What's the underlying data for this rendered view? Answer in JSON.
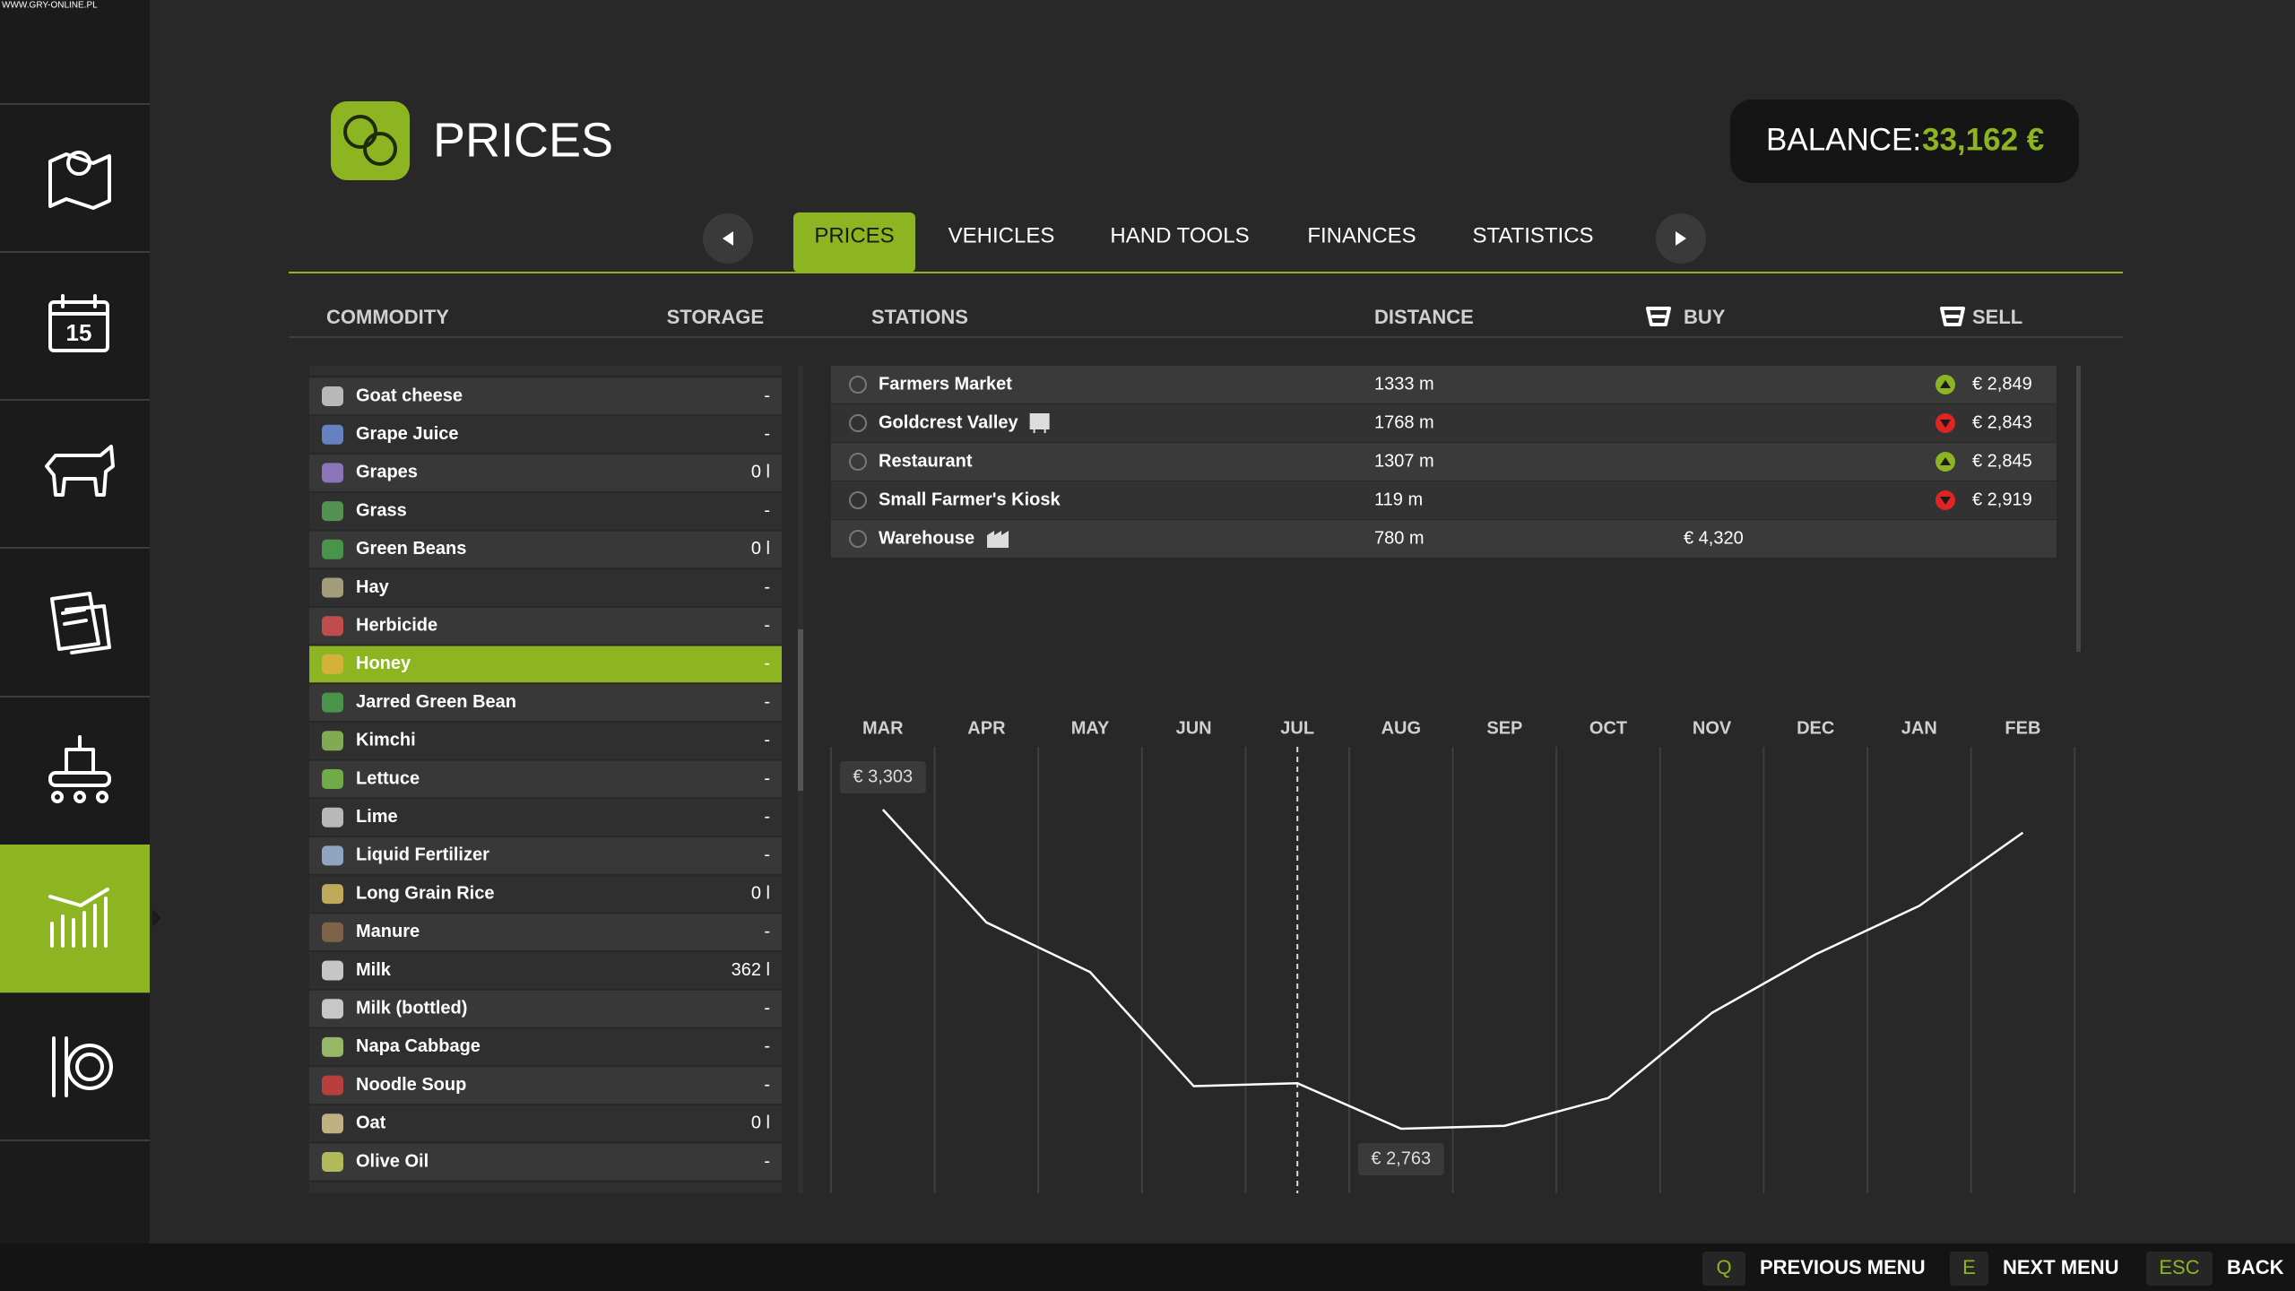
{
  "watermark": "WWW.GRY-ONLINE.PL",
  "sidebar": {
    "calendar_day": "15"
  },
  "header": {
    "title": "PRICES",
    "balance_label": "BALANCE:",
    "balance_value": "33,162 €"
  },
  "tabs": {
    "items": [
      "PRICES",
      "VEHICLES",
      "HAND TOOLS",
      "FINANCES",
      "STATISTICS"
    ],
    "active": 0
  },
  "columns": {
    "commodity": "COMMODITY",
    "storage": "STORAGE",
    "stations": "STATIONS",
    "distance": "DISTANCE",
    "buy": "BUY",
    "sell": "SELL"
  },
  "commodities": [
    {
      "name": "Goat cheese",
      "storage": "-"
    },
    {
      "name": "Grape Juice",
      "storage": "-"
    },
    {
      "name": "Grapes",
      "storage": "0 l"
    },
    {
      "name": "Grass",
      "storage": "-"
    },
    {
      "name": "Green Beans",
      "storage": "0 l"
    },
    {
      "name": "Hay",
      "storage": "-"
    },
    {
      "name": "Herbicide",
      "storage": "-"
    },
    {
      "name": "Honey",
      "storage": "-"
    },
    {
      "name": "Jarred Green Bean",
      "storage": "-"
    },
    {
      "name": "Kimchi",
      "storage": "-"
    },
    {
      "name": "Lettuce",
      "storage": "-"
    },
    {
      "name": "Lime",
      "storage": "-"
    },
    {
      "name": "Liquid Fertilizer",
      "storage": "-"
    },
    {
      "name": "Long Grain Rice",
      "storage": "0 l"
    },
    {
      "name": "Manure",
      "storage": "-"
    },
    {
      "name": "Milk",
      "storage": "362 l"
    },
    {
      "name": "Milk (bottled)",
      "storage": "-"
    },
    {
      "name": "Napa Cabbage",
      "storage": "-"
    },
    {
      "name": "Noodle Soup",
      "storage": "-"
    },
    {
      "name": "Oat",
      "storage": "0 l"
    },
    {
      "name": "Olive Oil",
      "storage": "-"
    }
  ],
  "selected_commodity": 7,
  "stations": [
    {
      "name": "Farmers Market",
      "distance": "1333 m",
      "buy": null,
      "sell": "€ 2,849",
      "trend": "up",
      "icon": null
    },
    {
      "name": "Goldcrest Valley",
      "distance": "1768 m",
      "buy": null,
      "sell": "€ 2,843",
      "trend": "down",
      "icon": "train"
    },
    {
      "name": "Restaurant",
      "distance": "1307 m",
      "buy": null,
      "sell": "€ 2,845",
      "trend": "up",
      "icon": null
    },
    {
      "name": "Small Farmer's Kiosk",
      "distance": "119 m",
      "buy": null,
      "sell": "€ 2,919",
      "trend": "down",
      "icon": null
    },
    {
      "name": "Warehouse",
      "distance": "780 m",
      "buy": "€ 4,320",
      "sell": null,
      "trend": null,
      "icon": "factory"
    }
  ],
  "chart_data": {
    "type": "line",
    "categories": [
      "MAR",
      "APR",
      "MAY",
      "JUN",
      "JUL",
      "AUG",
      "SEP",
      "OCT",
      "NOV",
      "DEC",
      "JAN",
      "FEB"
    ],
    "values": [
      3303,
      3112,
      3028,
      2835,
      2840,
      2763,
      2768,
      2815,
      2959,
      3058,
      3140,
      3264
    ],
    "value_labels": [
      "€ 3,303",
      null,
      null,
      null,
      null,
      "€ 2,763",
      null,
      null,
      null,
      null,
      null,
      null
    ],
    "color": "#ffffff",
    "selected_category": 4
  },
  "footer": {
    "keys": [
      {
        "key": "Q",
        "label": "PREVIOUS MENU"
      },
      {
        "key": "E",
        "label": "NEXT MENU"
      },
      {
        "key": "ESC",
        "label": "BACK"
      }
    ]
  }
}
